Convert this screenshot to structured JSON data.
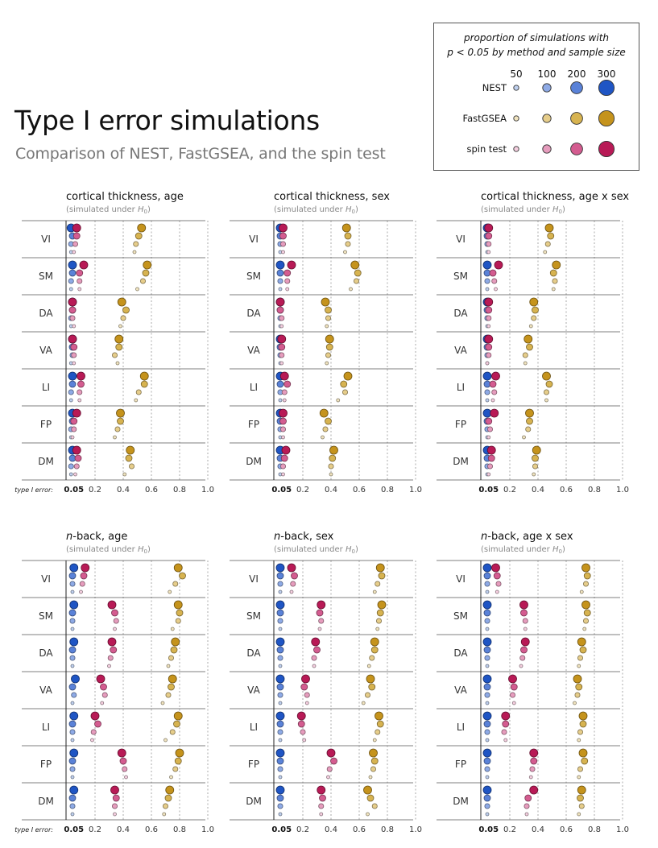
{
  "title": "Type I error simulations",
  "subtitle": "Comparison of NEST, FastGSEA, and the spin test",
  "legend": {
    "title_line1": "proportion of simulations with",
    "title_line2": "p < 0.05 by method and sample size",
    "sizes": [
      "50",
      "100",
      "200",
      "300"
    ],
    "methods": [
      {
        "key": "nest",
        "label": "NEST"
      },
      {
        "key": "fastgsea",
        "label": "FastGSEA"
      },
      {
        "key": "spin",
        "label": "spin test"
      }
    ]
  },
  "colors": {
    "nest": [
      "#bfd0ef",
      "#8eaae6",
      "#5a82d8",
      "#1f55c4"
    ],
    "fastgsea": [
      "#f1e4bf",
      "#e6cd8a",
      "#d7b350",
      "#c5931c"
    ],
    "spin": [
      "#f5cfe0",
      "#e69cbd",
      "#d45c90",
      "#b81a56"
    ]
  },
  "chart_data": [
    {
      "type": "scatter",
      "title_main": "cortical thickness, age",
      "subtitle": "(simulated under H0)",
      "xlabel": "type I error:",
      "xlim": [
        0,
        1.0
      ],
      "xticks": [
        "0.05",
        "0.2",
        "0.4",
        "0.6",
        "0.8",
        "1.0"
      ],
      "networks": [
        "VI",
        "SM",
        "DA",
        "VA",
        "LI",
        "FP",
        "DM"
      ],
      "methods": [
        "nest",
        "fastgsea",
        "spin"
      ],
      "sample_sizes": [
        300,
        200,
        100,
        50
      ],
      "values": {
        "nest": [
          [
            0.03,
            0.04,
            0.03,
            0.03
          ],
          [
            0.04,
            0.04,
            0.03,
            0.03
          ],
          [
            0.04,
            0.04,
            0.03,
            0.03
          ],
          [
            0.04,
            0.04,
            0.04,
            0.03
          ],
          [
            0.04,
            0.04,
            0.03,
            0.03
          ],
          [
            0.04,
            0.04,
            0.03,
            0.03
          ],
          [
            0.04,
            0.04,
            0.03,
            0.03
          ]
        ],
        "fastgsea": [
          [
            0.53,
            0.51,
            0.49,
            0.48
          ],
          [
            0.57,
            0.56,
            0.54,
            0.5
          ],
          [
            0.39,
            0.42,
            0.4,
            0.38
          ],
          [
            0.37,
            0.37,
            0.34,
            0.36
          ],
          [
            0.55,
            0.55,
            0.51,
            0.49
          ],
          [
            0.38,
            0.38,
            0.36,
            0.34
          ],
          [
            0.45,
            0.44,
            0.46,
            0.41
          ]
        ],
        "spin": [
          [
            0.07,
            0.07,
            0.06,
            0.05
          ],
          [
            0.12,
            0.09,
            0.09,
            0.09
          ],
          [
            0.04,
            0.04,
            0.04,
            0.05
          ],
          [
            0.04,
            0.05,
            0.05,
            0.05
          ],
          [
            0.1,
            0.1,
            0.09,
            0.09
          ],
          [
            0.07,
            0.05,
            0.05,
            0.04
          ],
          [
            0.07,
            0.08,
            0.07,
            0.06
          ]
        ]
      }
    },
    {
      "type": "scatter",
      "title_main": "cortical thickness, sex",
      "subtitle": "(simulated under H0)",
      "xlabel": "",
      "xlim": [
        0,
        1.0
      ],
      "xticks": [
        "0.05",
        "0.2",
        "0.4",
        "0.6",
        "0.8",
        "1.0"
      ],
      "networks": [
        "VI",
        "SM",
        "DA",
        "VA",
        "LI",
        "FP",
        "DM"
      ],
      "methods": [
        "nest",
        "fastgsea",
        "spin"
      ],
      "sample_sizes": [
        300,
        200,
        100,
        50
      ],
      "values": {
        "nest": [
          [
            0.04,
            0.04,
            0.04,
            0.04
          ],
          [
            0.04,
            0.04,
            0.04,
            0.04
          ],
          [
            0.04,
            0.04,
            0.04,
            0.04
          ],
          [
            0.04,
            0.04,
            0.04,
            0.04
          ],
          [
            0.04,
            0.04,
            0.04,
            0.04
          ],
          [
            0.04,
            0.04,
            0.04,
            0.04
          ],
          [
            0.04,
            0.04,
            0.04,
            0.04
          ]
        ],
        "fastgsea": [
          [
            0.51,
            0.52,
            0.52,
            0.5
          ],
          [
            0.57,
            0.59,
            0.58,
            0.54
          ],
          [
            0.36,
            0.38,
            0.38,
            0.37
          ],
          [
            0.39,
            0.39,
            0.38,
            0.37
          ],
          [
            0.52,
            0.49,
            0.5,
            0.45
          ],
          [
            0.35,
            0.38,
            0.36,
            0.34
          ],
          [
            0.42,
            0.41,
            0.4,
            0.4
          ]
        ],
        "spin": [
          [
            0.06,
            0.06,
            0.06,
            0.06
          ],
          [
            0.12,
            0.09,
            0.09,
            0.09
          ],
          [
            0.04,
            0.04,
            0.05,
            0.05
          ],
          [
            0.05,
            0.05,
            0.05,
            0.05
          ],
          [
            0.07,
            0.09,
            0.07,
            0.07
          ],
          [
            0.06,
            0.06,
            0.06,
            0.06
          ],
          [
            0.08,
            0.07,
            0.06,
            0.06
          ]
        ]
      }
    },
    {
      "type": "scatter",
      "title_main": "cortical thickness, age x sex",
      "subtitle": "(simulated under H0)",
      "xlabel": "",
      "xlim": [
        0,
        1.0
      ],
      "xticks": [
        "0.05",
        "0.2",
        "0.4",
        "0.6",
        "0.8",
        "1.0"
      ],
      "networks": [
        "VI",
        "SM",
        "DA",
        "VA",
        "LI",
        "FP",
        "DM"
      ],
      "methods": [
        "nest",
        "fastgsea",
        "spin"
      ],
      "sample_sizes": [
        300,
        200,
        100,
        50
      ],
      "values": {
        "nest": [
          [
            0.04,
            0.04,
            0.04,
            0.04
          ],
          [
            0.04,
            0.04,
            0.04,
            0.04
          ],
          [
            0.04,
            0.04,
            0.04,
            0.04
          ],
          [
            0.04,
            0.04,
            0.04,
            0.04
          ],
          [
            0.04,
            0.04,
            0.04,
            0.04
          ],
          [
            0.04,
            0.04,
            0.04,
            0.04
          ],
          [
            0.04,
            0.04,
            0.04,
            0.04
          ]
        ],
        "fastgsea": [
          [
            0.48,
            0.49,
            0.47,
            0.45
          ],
          [
            0.53,
            0.51,
            0.52,
            0.51
          ],
          [
            0.37,
            0.38,
            0.37,
            0.35
          ],
          [
            0.33,
            0.34,
            0.31,
            0.31
          ],
          [
            0.46,
            0.48,
            0.46,
            0.46
          ],
          [
            0.34,
            0.34,
            0.33,
            0.3
          ],
          [
            0.39,
            0.38,
            0.38,
            0.37
          ]
        ],
        "spin": [
          [
            0.05,
            0.05,
            0.05,
            0.05
          ],
          [
            0.12,
            0.08,
            0.09,
            0.1
          ],
          [
            0.05,
            0.05,
            0.05,
            0.05
          ],
          [
            0.05,
            0.05,
            0.05,
            0.04
          ],
          [
            0.1,
            0.08,
            0.09,
            0.08
          ],
          [
            0.09,
            0.05,
            0.06,
            0.05
          ],
          [
            0.07,
            0.07,
            0.06,
            0.05
          ]
        ]
      }
    },
    {
      "type": "scatter",
      "title_main": "-back, age",
      "title_italic_prefix": "n",
      "subtitle": "(simulated under H0)",
      "xlabel": "type I error:",
      "xlim": [
        0,
        1.0
      ],
      "xticks": [
        "0.05",
        "0.2",
        "0.4",
        "0.6",
        "0.8",
        "1.0"
      ],
      "networks": [
        "VI",
        "SM",
        "DA",
        "VA",
        "LI",
        "FP",
        "DM"
      ],
      "methods": [
        "nest",
        "fastgsea",
        "spin"
      ],
      "sample_sizes": [
        300,
        200,
        100,
        50
      ],
      "values": {
        "nest": [
          [
            0.05,
            0.04,
            0.04,
            0.04
          ],
          [
            0.05,
            0.04,
            0.04,
            0.04
          ],
          [
            0.05,
            0.04,
            0.04,
            0.04
          ],
          [
            0.06,
            0.04,
            0.05,
            0.04
          ],
          [
            0.05,
            0.04,
            0.04,
            0.04
          ],
          [
            0.05,
            0.04,
            0.04,
            0.04
          ],
          [
            0.05,
            0.04,
            0.04,
            0.04
          ]
        ],
        "fastgsea": [
          [
            0.79,
            0.82,
            0.77,
            0.73
          ],
          [
            0.79,
            0.8,
            0.79,
            0.75
          ],
          [
            0.77,
            0.76,
            0.74,
            0.72
          ],
          [
            0.75,
            0.74,
            0.72,
            0.68
          ],
          [
            0.79,
            0.78,
            0.75,
            0.7
          ],
          [
            0.8,
            0.79,
            0.77,
            0.74
          ],
          [
            0.73,
            0.72,
            0.7,
            0.69
          ]
        ],
        "spin": [
          [
            0.13,
            0.12,
            0.11,
            0.1
          ],
          [
            0.32,
            0.34,
            0.35,
            0.34
          ],
          [
            0.32,
            0.33,
            0.31,
            0.3
          ],
          [
            0.24,
            0.26,
            0.27,
            0.25
          ],
          [
            0.2,
            0.22,
            0.19,
            0.18
          ],
          [
            0.39,
            0.4,
            0.41,
            0.42
          ],
          [
            0.34,
            0.35,
            0.34,
            0.34
          ]
        ]
      }
    },
    {
      "type": "scatter",
      "title_main": "-back, sex",
      "title_italic_prefix": "n",
      "subtitle": "(simulated under H0)",
      "xlabel": "",
      "xlim": [
        0,
        1.0
      ],
      "xticks": [
        "0.05",
        "0.2",
        "0.4",
        "0.6",
        "0.8",
        "1.0"
      ],
      "networks": [
        "VI",
        "SM",
        "DA",
        "VA",
        "LI",
        "FP",
        "DM"
      ],
      "methods": [
        "nest",
        "fastgsea",
        "spin"
      ],
      "sample_sizes": [
        300,
        200,
        100,
        50
      ],
      "values": {
        "nest": [
          [
            0.04,
            0.04,
            0.04,
            0.04
          ],
          [
            0.04,
            0.04,
            0.04,
            0.04
          ],
          [
            0.04,
            0.04,
            0.04,
            0.04
          ],
          [
            0.04,
            0.04,
            0.04,
            0.04
          ],
          [
            0.04,
            0.04,
            0.04,
            0.04
          ],
          [
            0.04,
            0.04,
            0.04,
            0.04
          ],
          [
            0.04,
            0.04,
            0.04,
            0.04
          ]
        ],
        "fastgsea": [
          [
            0.75,
            0.76,
            0.73,
            0.71
          ],
          [
            0.76,
            0.75,
            0.74,
            0.73
          ],
          [
            0.71,
            0.71,
            0.69,
            0.67
          ],
          [
            0.68,
            0.69,
            0.66,
            0.63
          ],
          [
            0.74,
            0.75,
            0.73,
            0.71
          ],
          [
            0.7,
            0.71,
            0.7,
            0.68
          ],
          [
            0.66,
            0.68,
            0.71,
            0.66
          ]
        ],
        "spin": [
          [
            0.12,
            0.14,
            0.13,
            0.12
          ],
          [
            0.33,
            0.32,
            0.33,
            0.32
          ],
          [
            0.29,
            0.3,
            0.28,
            0.28
          ],
          [
            0.22,
            0.21,
            0.23,
            0.23
          ],
          [
            0.19,
            0.19,
            0.2,
            0.21
          ],
          [
            0.4,
            0.42,
            0.39,
            0.38
          ],
          [
            0.33,
            0.34,
            0.33,
            0.33
          ]
        ]
      }
    },
    {
      "type": "scatter",
      "title_main": "-back, age x sex",
      "title_italic_prefix": "n",
      "subtitle": "(simulated under H0)",
      "xlabel": "",
      "xlim": [
        0,
        1.0
      ],
      "xticks": [
        "0.05",
        "0.2",
        "0.4",
        "0.6",
        "0.8",
        "1.0"
      ],
      "networks": [
        "VI",
        "SM",
        "DA",
        "VA",
        "LI",
        "FP",
        "DM"
      ],
      "methods": [
        "nest",
        "fastgsea",
        "spin"
      ],
      "sample_sizes": [
        300,
        200,
        100,
        50
      ],
      "values": {
        "nest": [
          [
            0.04,
            0.04,
            0.04,
            0.04
          ],
          [
            0.04,
            0.04,
            0.04,
            0.04
          ],
          [
            0.04,
            0.04,
            0.04,
            0.04
          ],
          [
            0.04,
            0.04,
            0.04,
            0.04
          ],
          [
            0.04,
            0.04,
            0.04,
            0.04
          ],
          [
            0.04,
            0.04,
            0.04,
            0.04
          ],
          [
            0.04,
            0.04,
            0.04,
            0.04
          ]
        ],
        "fastgsea": [
          [
            0.74,
            0.75,
            0.74,
            0.71
          ],
          [
            0.74,
            0.75,
            0.74,
            0.73
          ],
          [
            0.71,
            0.72,
            0.7,
            0.69
          ],
          [
            0.68,
            0.69,
            0.68,
            0.66
          ],
          [
            0.72,
            0.72,
            0.7,
            0.69
          ],
          [
            0.72,
            0.73,
            0.7,
            0.69
          ],
          [
            0.71,
            0.7,
            0.71,
            0.69
          ]
        ],
        "spin": [
          [
            0.1,
            0.11,
            0.12,
            0.11
          ],
          [
            0.3,
            0.3,
            0.31,
            0.31
          ],
          [
            0.31,
            0.3,
            0.29,
            0.28
          ],
          [
            0.22,
            0.23,
            0.22,
            0.23
          ],
          [
            0.17,
            0.17,
            0.16,
            0.17
          ],
          [
            0.37,
            0.37,
            0.36,
            0.35
          ],
          [
            0.37,
            0.33,
            0.32,
            0.32
          ]
        ]
      }
    }
  ]
}
